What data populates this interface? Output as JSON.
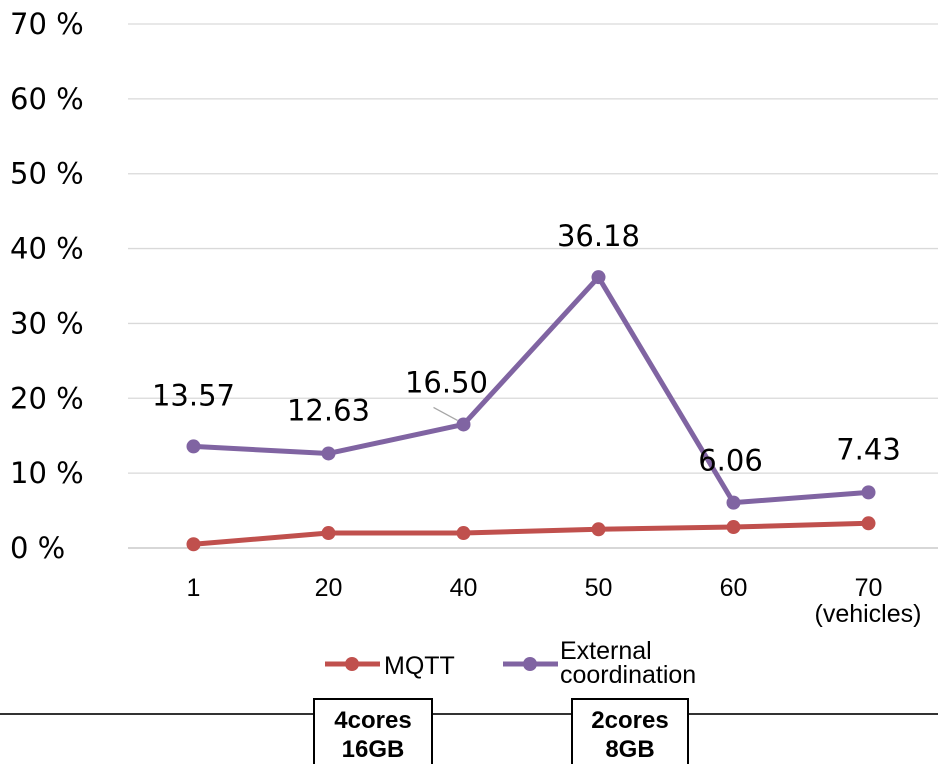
{
  "chart_data": {
    "type": "line",
    "categories": [
      "1",
      "20",
      "40",
      "50",
      "60",
      "70"
    ],
    "x_unit_label": "(vehicles)",
    "y_ticks": [
      "0 %",
      "10 %",
      "20 %",
      "30 %",
      "40 %",
      "50 %",
      "60 %",
      "70 %"
    ],
    "ylim": [
      0,
      70
    ],
    "grid": true,
    "legend_position": "bottom",
    "series": [
      {
        "name": "MQTT",
        "color": "#c0504d",
        "values": [
          0.5,
          2.0,
          2.0,
          2.5,
          2.8,
          3.3
        ],
        "data_labels": [
          "",
          "",
          "",
          "",
          "",
          ""
        ]
      },
      {
        "name_lines": [
          "External",
          "coordination"
        ],
        "color": "#8064a2",
        "values": [
          13.57,
          12.63,
          16.5,
          36.18,
          6.06,
          7.43
        ],
        "data_labels": [
          "13.57",
          "12.63",
          "16.50",
          "36.18",
          "6.06",
          "7.43"
        ]
      }
    ]
  },
  "config_boxes": [
    {
      "lines": [
        "4cores",
        "16GB"
      ]
    },
    {
      "lines": [
        "2cores",
        "8GB"
      ]
    }
  ]
}
